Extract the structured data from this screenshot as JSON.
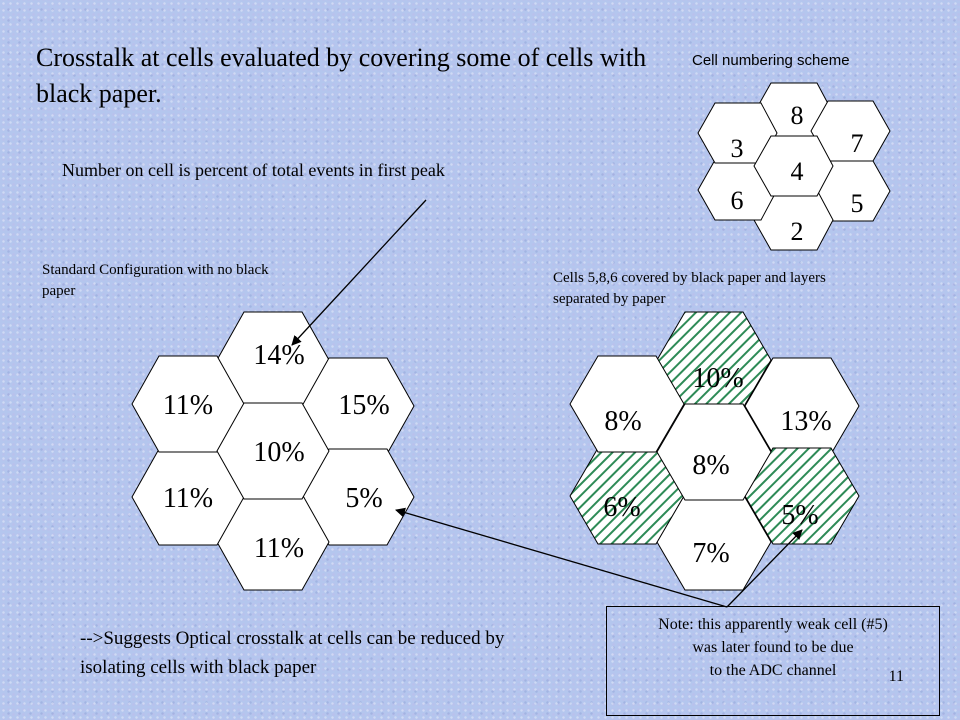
{
  "title": "Crosstalk at cells evaluated by covering some of cells with black paper.",
  "scheme": {
    "caption": "Cell numbering scheme",
    "cells": {
      "c2": "2",
      "c3": "3",
      "c4": "4",
      "c5": "5",
      "c6": "6",
      "c7": "7",
      "c8": "8"
    }
  },
  "peak_caption": "Number on cell is percent of total events in first peak",
  "standard": {
    "caption": "Standard Configuration with no black paper",
    "cells": {
      "c2": "11%",
      "c3": "11%",
      "c4": "10%",
      "c5": "5%",
      "c6": "11%",
      "c7": "15%",
      "c8": "14%"
    }
  },
  "covered": {
    "caption": "Cells 5,8,6 covered by black paper and layers separated by paper",
    "cells": {
      "c2": "7%",
      "c3": "8%",
      "c4": "8%",
      "c5": "5%",
      "c6": "6%",
      "c7": "13%",
      "c8": "10%"
    }
  },
  "conclusion": "-->Suggests Optical crosstalk at cells can be reduced by isolating cells with black paper",
  "note": {
    "line1": "Note: this apparently weak cell (#5)",
    "line2": "was later found to be due",
    "line3": "to the ADC channel"
  },
  "page_number": "11",
  "colors": {
    "hatch": "#2e8b57",
    "hex_fill": "#ffffff",
    "background": "#b4c6ee"
  }
}
